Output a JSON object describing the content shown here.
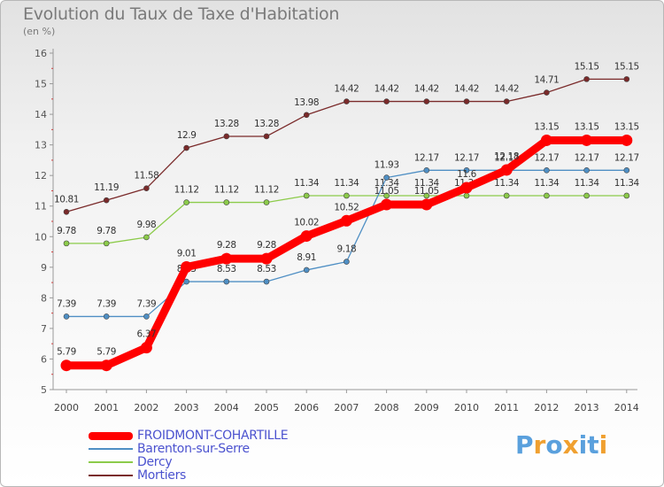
{
  "header": {
    "title": "Evolution du Taux de Taxe d'Habitation",
    "subtitle": "(en %)"
  },
  "logo": {
    "letters": [
      "P",
      "r",
      "o",
      "x",
      "i",
      "t",
      "i"
    ],
    "colors": [
      "#5aa0dd",
      "#f0a030",
      "#5aa0dd",
      "#f0a030",
      "#5aa0dd",
      "#5aa0dd",
      "#f0a030"
    ]
  },
  "chart_data": {
    "type": "line",
    "x": [
      "2000",
      "2001",
      "2002",
      "2003",
      "2004",
      "2005",
      "2006",
      "2007",
      "2008",
      "2009",
      "2010",
      "2011",
      "2012",
      "2013",
      "2014"
    ],
    "ylim": [
      5,
      16
    ],
    "yticks": [
      "5",
      "6",
      "7",
      "8",
      "9",
      "10",
      "11",
      "12",
      "13",
      "14",
      "15",
      "16"
    ],
    "grid": false,
    "legend_position": "bottom-left",
    "series": [
      {
        "name": "Mortiers",
        "color": "#7a2a2a",
        "values": [
          10.81,
          11.19,
          11.58,
          12.9,
          13.28,
          13.28,
          13.98,
          14.42,
          14.42,
          14.42,
          14.42,
          14.42,
          14.71,
          15.15,
          15.15
        ],
        "labels": [
          "10.81",
          "11.19",
          "11.58",
          "12.9",
          "13.28",
          "13.28",
          "13.98",
          "14.42",
          "14.42",
          "14.42",
          "14.42",
          "14.42",
          "14.71",
          "15.15",
          "15.15"
        ]
      },
      {
        "name": "Dercy",
        "color": "#8ccb4a",
        "values": [
          9.78,
          9.78,
          9.98,
          11.12,
          11.12,
          11.12,
          11.34,
          11.34,
          11.34,
          11.34,
          11.34,
          11.34,
          11.34,
          11.34,
          11.34
        ],
        "labels": [
          "9.78",
          "9.78",
          "9.98",
          "11.12",
          "11.12",
          "11.12",
          "11.34",
          "11.34",
          "11.34",
          "11.34",
          "11.34",
          "11.34",
          "11.34",
          "11.34",
          "11.34"
        ]
      },
      {
        "name": "Barenton-sur-Serre",
        "color": "#4f8fc4",
        "values": [
          7.39,
          7.39,
          7.39,
          8.53,
          8.53,
          8.53,
          8.91,
          9.18,
          11.93,
          12.17,
          12.17,
          12.17,
          12.17,
          12.17,
          12.17
        ],
        "labels": [
          "7.39",
          "7.39",
          "7.39",
          "8.53",
          "8.53",
          "8.53",
          "8.91",
          "9.18",
          "11.93",
          "12.17",
          "12.17",
          "12.17",
          "12.17",
          "12.17",
          "12.17"
        ]
      },
      {
        "name": "FROIDMONT-COHARTILLE",
        "color": "#ff0000",
        "values": [
          5.79,
          5.79,
          6.37,
          9.01,
          9.28,
          9.28,
          10.02,
          10.52,
          11.05,
          11.05,
          11.6,
          12.18,
          13.15,
          13.15,
          13.15
        ],
        "labels": [
          "5.79",
          "5.79",
          "6.37",
          "9.01",
          "9.28",
          "9.28",
          "10.02",
          "10.52",
          "11.05",
          "11.05",
          "11.6",
          "12.18",
          "13.15",
          "13.15",
          "13.15"
        ]
      }
    ],
    "legend": [
      {
        "name": "FROIDMONT-COHARTILLE",
        "color": "#ff0000",
        "width": 9
      },
      {
        "name": "Barenton-sur-Serre",
        "color": "#4f8fc4",
        "width": 2
      },
      {
        "name": "Dercy",
        "color": "#8ccb4a",
        "width": 2
      },
      {
        "name": "Mortiers",
        "color": "#7a2a2a",
        "width": 2
      }
    ]
  }
}
